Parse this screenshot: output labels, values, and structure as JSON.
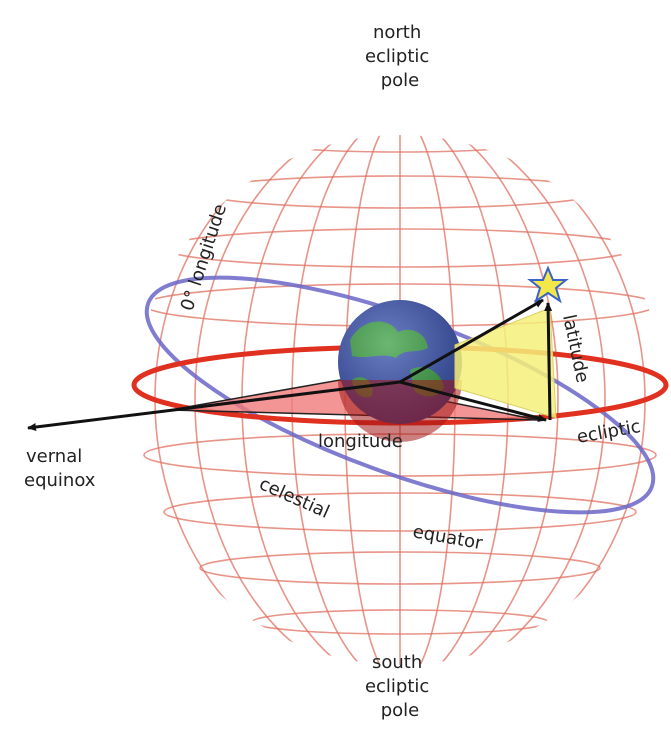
{
  "diagram": {
    "labels": {
      "north_pole": [
        "north",
        "ecliptic",
        "pole"
      ],
      "south_pole": [
        "south",
        "ecliptic",
        "pole"
      ],
      "vernal": [
        "vernal",
        "equinox"
      ],
      "zero_longitude": "0° longitude",
      "latitude": "latitude",
      "longitude": "longitude",
      "ecliptic": "ecliptic",
      "celestial": "celestial",
      "equator": "equator"
    },
    "colors": {
      "grid": "#e07060",
      "ecliptic": "#e03020",
      "celestial_equator": "#6a66c8",
      "longitude_wedge": "#f07a7a",
      "latitude_wedge": "#f5f07a",
      "star": "#f3e84a",
      "star_outline": "#3a63c9",
      "arrow": "#111111",
      "earth_ocean": "#3a52b0",
      "earth_land": "#3aa044"
    },
    "icons": {
      "star": "star-icon",
      "earth": "earth-icon"
    }
  }
}
